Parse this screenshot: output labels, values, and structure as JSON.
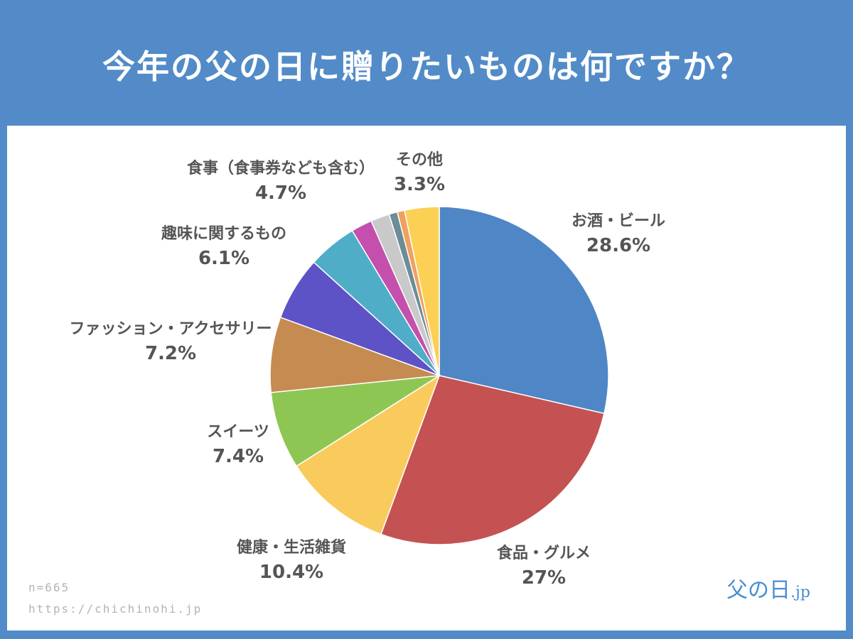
{
  "title": "今年の父の日に贈りたいものは何ですか？",
  "footer": {
    "n": "n=665",
    "url": "https://chichinohi.jp"
  },
  "logo": {
    "main": "父の日",
    "suffix": ".jp"
  },
  "colors": {
    "background": "#528bc8",
    "panel": "#ffffff",
    "label": "#555555"
  },
  "chart_data": {
    "type": "pie",
    "title": "今年の父の日に贈りたいものは何ですか？",
    "start": "12 o'clock, clockwise",
    "slices": [
      {
        "label": "お酒・ビール",
        "display": "28.6%",
        "value": 28.6,
        "color": "#4f86c6"
      },
      {
        "label": "食品・グルメ",
        "display": "27%",
        "value": 27.0,
        "color": "#c55252"
      },
      {
        "label": "健康・生活雑貨",
        "display": "10.4%",
        "value": 10.4,
        "color": "#f9cb5d"
      },
      {
        "label": "スイーツ",
        "display": "7.4%",
        "value": 7.4,
        "color": "#8ec653"
      },
      {
        "label": "ファッション・アクセサリー",
        "display": "7.2%",
        "value": 7.2,
        "color": "#c58b50"
      },
      {
        "label": "趣味に関するもの",
        "display": "6.1%",
        "value": 6.1,
        "color": "#5e52c7"
      },
      {
        "label": "食事（食事券なども含む）",
        "display": "4.7%",
        "value": 4.7,
        "color": "#4fadc8"
      },
      {
        "label": "",
        "display": "",
        "value": 2.0,
        "color": "#c44fad"
      },
      {
        "label": "",
        "display": "",
        "value": 1.8,
        "color": "#c9c9c9"
      },
      {
        "label": "",
        "display": "",
        "value": 0.8,
        "color": "#6c8c96"
      },
      {
        "label": "",
        "display": "",
        "value": 0.7,
        "color": "#f0a060"
      },
      {
        "label": "その他",
        "display": "3.3%",
        "value": 3.3,
        "color": "#fcd055"
      }
    ]
  }
}
